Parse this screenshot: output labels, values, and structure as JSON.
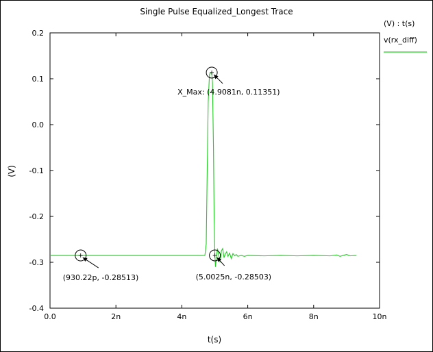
{
  "chart_data": {
    "type": "line",
    "title": "Single Pulse Equalized_Longest Trace",
    "xlabel": "t(s)",
    "ylabel": "(V)",
    "xlim": [
      0,
      10
    ],
    "ylim": [
      -0.4,
      0.2
    ],
    "x_unit": "ns",
    "x_ticks": [
      {
        "v": 0,
        "label": "0.0"
      },
      {
        "v": 2,
        "label": "2n"
      },
      {
        "v": 4,
        "label": "4n"
      },
      {
        "v": 6,
        "label": "6n"
      },
      {
        "v": 8,
        "label": "8n"
      },
      {
        "v": 10,
        "label": "10n"
      }
    ],
    "y_ticks": [
      {
        "v": 0.2,
        "label": "0.2"
      },
      {
        "v": 0.1,
        "label": "0.1"
      },
      {
        "v": 0.0,
        "label": "0.0"
      },
      {
        "v": -0.1,
        "label": "-0.1"
      },
      {
        "v": -0.2,
        "label": "-0.2"
      },
      {
        "v": -0.3,
        "label": "-0.3"
      },
      {
        "v": -0.4,
        "label": "-0.4"
      }
    ],
    "grid": false,
    "legend_position": "right",
    "legend_header": "(V) : t(s)",
    "series": [
      {
        "name": "v(rx_diff)",
        "color": "#22cc22",
        "x": [
          0.0,
          1.0,
          2.0,
          3.0,
          4.0,
          4.6,
          4.7,
          4.74,
          4.77,
          4.8,
          4.84,
          4.88,
          4.9081,
          4.93,
          4.96,
          4.98,
          5.0025,
          5.02,
          5.05,
          5.08,
          5.12,
          5.16,
          5.2,
          5.24,
          5.28,
          5.32,
          5.36,
          5.4,
          5.45,
          5.5,
          5.55,
          5.6,
          5.65,
          5.7,
          5.8,
          5.9,
          6.0,
          6.5,
          7.0,
          7.5,
          8.0,
          8.5,
          8.7,
          8.8,
          8.9,
          9.0,
          9.1,
          9.3
        ],
        "y": [
          -0.28513,
          -0.28513,
          -0.28513,
          -0.28513,
          -0.28513,
          -0.28513,
          -0.285,
          -0.26,
          -0.1,
          0.05,
          0.11,
          0.113,
          0.11351,
          0.09,
          -0.05,
          -0.2,
          -0.28503,
          -0.31,
          -0.29,
          -0.27,
          -0.285,
          -0.3,
          -0.275,
          -0.27,
          -0.29,
          -0.282,
          -0.277,
          -0.287,
          -0.28,
          -0.292,
          -0.281,
          -0.286,
          -0.283,
          -0.287,
          -0.285,
          -0.287,
          -0.285,
          -0.286,
          -0.285,
          -0.286,
          -0.285,
          -0.286,
          -0.284,
          -0.287,
          -0.285,
          -0.283,
          -0.286,
          -0.285
        ]
      }
    ],
    "markers": [
      {
        "x": 0.93022,
        "y": -0.28513,
        "label": "(930.22p, -0.28513)"
      },
      {
        "x": 4.9081,
        "y": 0.11351,
        "label": "X_Max: (4.9081n, 0.11351)"
      },
      {
        "x": 5.0025,
        "y": -0.28503,
        "label": "(5.0025n, -0.28503)"
      }
    ]
  }
}
